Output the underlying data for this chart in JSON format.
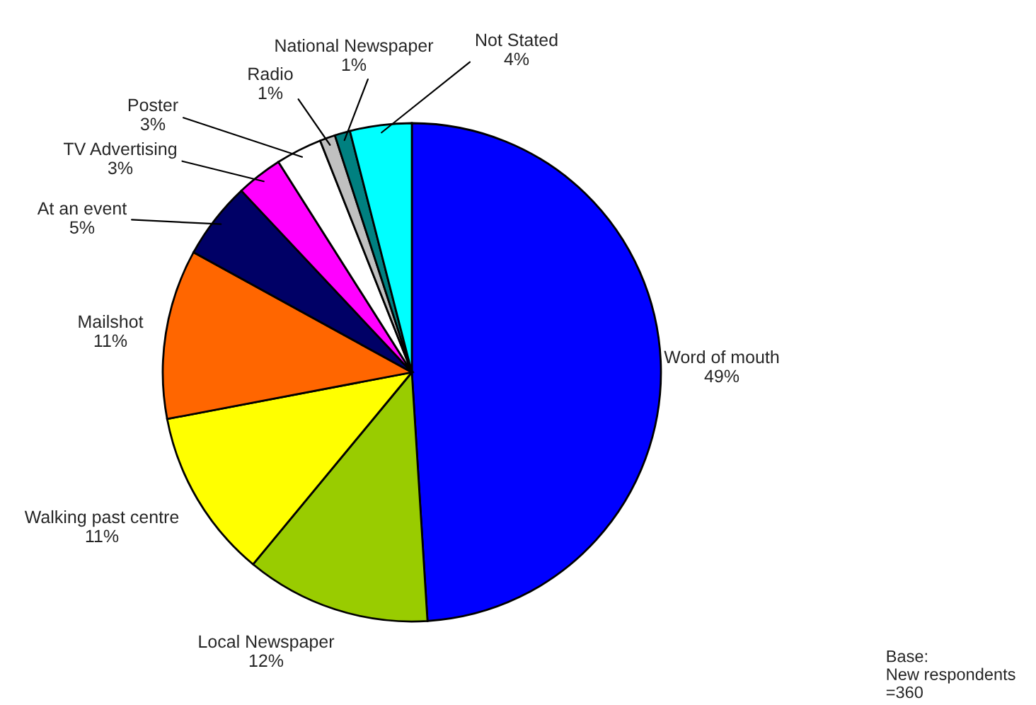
{
  "chart_data": {
    "type": "pie",
    "categories": [
      "Word of mouth",
      "Local Newspaper",
      "Walking past centre",
      "Mailshot",
      "At an event",
      "TV Advertising",
      "Poster",
      "Radio",
      "National Newspaper",
      "Not Stated"
    ],
    "values": [
      49,
      12,
      11,
      11,
      5,
      3,
      3,
      1,
      1,
      4
    ],
    "colors": [
      "#0000ff",
      "#99cc00",
      "#ffff00",
      "#ff6600",
      "#000066",
      "#ff00ff",
      "#ffffff",
      "#c0c0c0",
      "#008080",
      "#00ffff"
    ],
    "value_labels": [
      "49%",
      "12%",
      "11%",
      "11%",
      "5%",
      "3%",
      "3%",
      "1%",
      "1%",
      "4%"
    ],
    "annotations": [
      "Base:\nNew respondents\n=360"
    ]
  }
}
